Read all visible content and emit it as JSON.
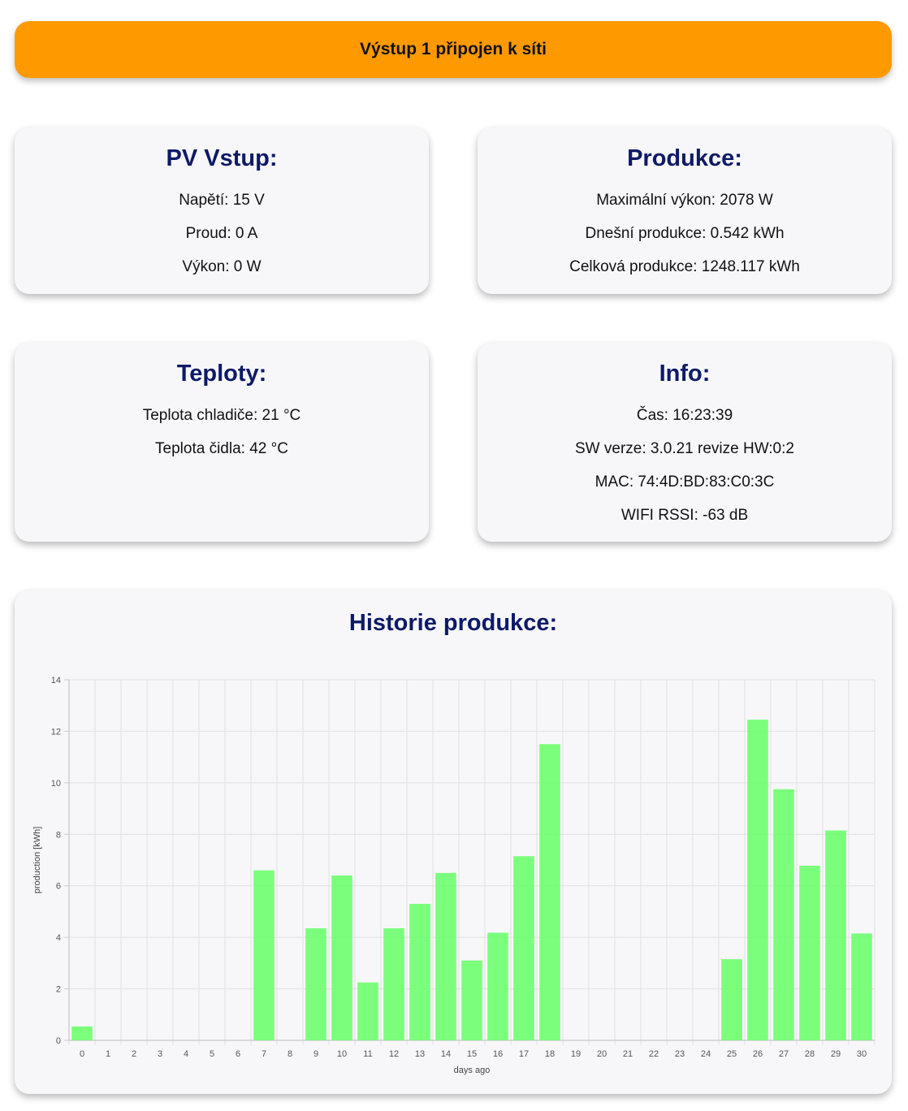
{
  "banner": {
    "text": "Výstup 1 připojen k síti"
  },
  "pv": {
    "title": "PV Vstup:",
    "lines": [
      "Napětí: 15 V",
      "Proud: 0 A",
      "Výkon: 0 W"
    ]
  },
  "production": {
    "title": "Produkce:",
    "lines": [
      "Maximální výkon: 2078 W",
      "Dnešní produkce: 0.542 kWh",
      "Celková produkce: 1248.117 kWh"
    ]
  },
  "temps": {
    "title": "Teploty:",
    "lines": [
      "Teplota chladiče: 21 °C",
      "Teplota čidla: 42 °C"
    ]
  },
  "info": {
    "title": "Info:",
    "lines": [
      "Čas: 16:23:39",
      "SW verze: 3.0.21 revize HW:0:2",
      "MAC: 74:4D:BD:83:C0:3C",
      "WIFI RSSI: -63 dB"
    ]
  },
  "history": {
    "title": "Historie produkce:"
  },
  "chart_data": {
    "type": "bar",
    "categories": [
      "0",
      "1",
      "2",
      "3",
      "4",
      "5",
      "6",
      "7",
      "8",
      "9",
      "10",
      "11",
      "12",
      "13",
      "14",
      "15",
      "16",
      "17",
      "18",
      "19",
      "20",
      "21",
      "22",
      "23",
      "24",
      "25",
      "26",
      "27",
      "28",
      "29",
      "30"
    ],
    "values": [
      0.54,
      0,
      0,
      0,
      0,
      0,
      0,
      6.6,
      0,
      4.35,
      6.4,
      2.25,
      4.35,
      5.3,
      6.5,
      3.1,
      4.18,
      7.15,
      11.5,
      0,
      0,
      0,
      0,
      0,
      0,
      3.15,
      12.45,
      9.75,
      6.78,
      8.15,
      4.15
    ],
    "xlabel": "days ago",
    "ylabel": "production [kWh]",
    "ylim": [
      0,
      14
    ],
    "yticks": [
      "0",
      "2",
      "4",
      "6",
      "8",
      "10",
      "12",
      "14"
    ],
    "grid": true,
    "bar_color": "#66ff66"
  }
}
